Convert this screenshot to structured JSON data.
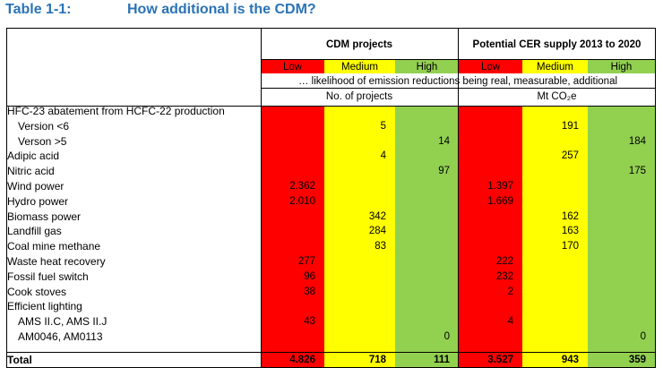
{
  "title": {
    "label": "Table 1-1:",
    "text": "How additional is the CDM?"
  },
  "groups": [
    {
      "name": "CDM projects",
      "unit": "No. of projects"
    },
    {
      "name": "Potential CER supply 2013 to 2020",
      "unit": "Mt CO₂e"
    }
  ],
  "levels": [
    "Low",
    "Medium",
    "High"
  ],
  "note": "… likelihood of emission reductions being real, measurable, additional",
  "level_colors": {
    "Low": "#ff0000",
    "Medium": "#ffff00",
    "High": "#92d050"
  },
  "rows": [
    {
      "label": "HFC-23 abatement from HCFC-22 production",
      "indent": false,
      "projects": [
        "",
        "",
        ""
      ],
      "cer": [
        "",
        "",
        ""
      ]
    },
    {
      "label": "Version <6",
      "indent": true,
      "projects": [
        "",
        "5",
        ""
      ],
      "cer": [
        "",
        "191",
        ""
      ]
    },
    {
      "label": "Verson >5",
      "indent": true,
      "projects": [
        "",
        "",
        "14"
      ],
      "cer": [
        "",
        "",
        "184"
      ]
    },
    {
      "label": "Adipic acid",
      "indent": false,
      "projects": [
        "",
        "4",
        ""
      ],
      "cer": [
        "",
        "257",
        ""
      ]
    },
    {
      "label": "Nitric acid",
      "indent": false,
      "projects": [
        "",
        "",
        "97"
      ],
      "cer": [
        "",
        "",
        "175"
      ]
    },
    {
      "label": "Wind power",
      "indent": false,
      "projects": [
        "2.362",
        "",
        ""
      ],
      "cer": [
        "1.397",
        "",
        ""
      ]
    },
    {
      "label": "Hydro power",
      "indent": false,
      "projects": [
        "2.010",
        "",
        ""
      ],
      "cer": [
        "1.669",
        "",
        ""
      ]
    },
    {
      "label": "Biomass power",
      "indent": false,
      "projects": [
        "",
        "342",
        ""
      ],
      "cer": [
        "",
        "162",
        ""
      ]
    },
    {
      "label": "Landfill gas",
      "indent": false,
      "projects": [
        "",
        "284",
        ""
      ],
      "cer": [
        "",
        "163",
        ""
      ]
    },
    {
      "label": "Coal mine methane",
      "indent": false,
      "projects": [
        "",
        "83",
        ""
      ],
      "cer": [
        "",
        "170",
        ""
      ]
    },
    {
      "label": "Waste heat recovery",
      "indent": false,
      "projects": [
        "277",
        "",
        ""
      ],
      "cer": [
        "222",
        "",
        ""
      ]
    },
    {
      "label": "Fossil fuel switch",
      "indent": false,
      "projects": [
        "96",
        "",
        ""
      ],
      "cer": [
        "232",
        "",
        ""
      ]
    },
    {
      "label": "Cook stoves",
      "indent": false,
      "projects": [
        "38",
        "",
        ""
      ],
      "cer": [
        "2",
        "",
        ""
      ]
    },
    {
      "label": "Efficient lighting",
      "indent": false,
      "projects": [
        "",
        "",
        ""
      ],
      "cer": [
        "",
        "",
        ""
      ]
    },
    {
      "label": "AMS II.C, AMS II.J",
      "indent": true,
      "projects": [
        "43",
        "",
        ""
      ],
      "cer": [
        "4",
        "",
        ""
      ]
    },
    {
      "label": "AM0046, AM0113",
      "indent": true,
      "projects": [
        "",
        "",
        "0"
      ],
      "cer": [
        "",
        "",
        "0"
      ]
    }
  ],
  "total": {
    "label": "Total",
    "projects": [
      "4.826",
      "718",
      "111"
    ],
    "cer": [
      "3.527",
      "943",
      "359"
    ]
  }
}
